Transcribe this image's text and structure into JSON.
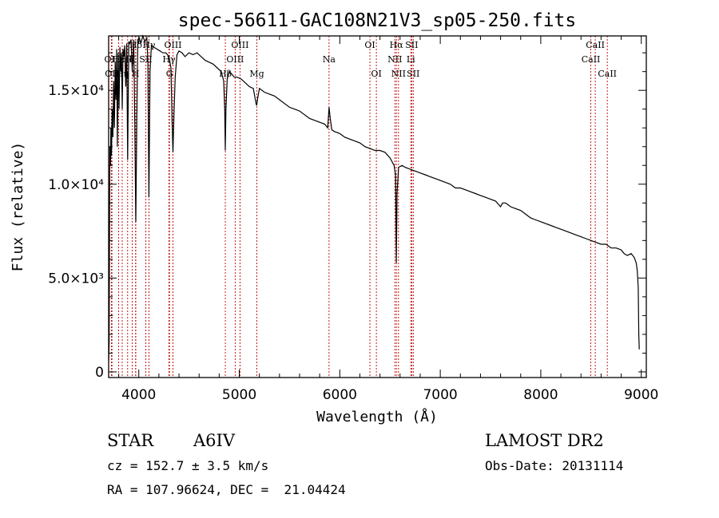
{
  "chart_data": {
    "type": "line",
    "title": "spec-56611-GAC108N21V3_sp05-250.fits",
    "xlabel": "Wavelength (Å)",
    "ylabel": "Flux (relative)",
    "xlim": [
      3700,
      9050
    ],
    "ylim": [
      -300,
      17900
    ],
    "x_ticks": [
      {
        "value": 4000,
        "label": "4000"
      },
      {
        "value": 5000,
        "label": "5000"
      },
      {
        "value": 6000,
        "label": "6000"
      },
      {
        "value": 7000,
        "label": "7000"
      },
      {
        "value": 8000,
        "label": "8000"
      },
      {
        "value": 9000,
        "label": "9000"
      }
    ],
    "y_ticks": [
      {
        "value": 0,
        "label": "0"
      },
      {
        "value": 5000,
        "label": "5.0×10³"
      },
      {
        "value": 10000,
        "label": "1.0×10⁴"
      },
      {
        "value": 15000,
        "label": "1.5×10⁴"
      }
    ],
    "series": [
      {
        "name": "spectrum",
        "color": "#000000",
        "points": [
          [
            3700,
            600
          ],
          [
            3705,
            1500
          ],
          [
            3712,
            12000
          ],
          [
            3718,
            11000
          ],
          [
            3722,
            13000
          ],
          [
            3728,
            11500
          ],
          [
            3735,
            14000
          ],
          [
            3742,
            12500
          ],
          [
            3750,
            15500
          ],
          [
            3757,
            13000
          ],
          [
            3765,
            16500
          ],
          [
            3772,
            14500
          ],
          [
            3780,
            17200
          ],
          [
            3787,
            12000
          ],
          [
            3795,
            17000
          ],
          [
            3803,
            14000
          ],
          [
            3812,
            17300
          ],
          [
            3820,
            16000
          ],
          [
            3828,
            17000
          ],
          [
            3835,
            14000
          ],
          [
            3843,
            17200
          ],
          [
            3852,
            16800
          ],
          [
            3860,
            17400
          ],
          [
            3870,
            15200
          ],
          [
            3880,
            17500
          ],
          [
            3889,
            11300
          ],
          [
            3900,
            17600
          ],
          [
            3910,
            17500
          ],
          [
            3922,
            17700
          ],
          [
            3935,
            16000
          ],
          [
            3950,
            17700
          ],
          [
            3960,
            13300
          ],
          [
            3970,
            8000
          ],
          [
            3980,
            13300
          ],
          [
            3990,
            17700
          ],
          [
            4005,
            17800
          ],
          [
            4020,
            17500
          ],
          [
            4040,
            17900
          ],
          [
            4060,
            17600
          ],
          [
            4080,
            17800
          ],
          [
            4090,
            16500
          ],
          [
            4101,
            9300
          ],
          [
            4112,
            16000
          ],
          [
            4125,
            17400
          ],
          [
            4150,
            17300
          ],
          [
            4180,
            17200
          ],
          [
            4210,
            17100
          ],
          [
            4240,
            17000
          ],
          [
            4270,
            17000
          ],
          [
            4300,
            16800
          ],
          [
            4320,
            16200
          ],
          [
            4330,
            13500
          ],
          [
            4340,
            11700
          ],
          [
            4350,
            13800
          ],
          [
            4362,
            15700
          ],
          [
            4380,
            16900
          ],
          [
            4400,
            17100
          ],
          [
            4430,
            17000
          ],
          [
            4460,
            16800
          ],
          [
            4500,
            17000
          ],
          [
            4540,
            16900
          ],
          [
            4580,
            17000
          ],
          [
            4620,
            16800
          ],
          [
            4660,
            16600
          ],
          [
            4700,
            16500
          ],
          [
            4740,
            16400
          ],
          [
            4780,
            16200
          ],
          [
            4820,
            16000
          ],
          [
            4845,
            15500
          ],
          [
            4855,
            14000
          ],
          [
            4861,
            11800
          ],
          [
            4867,
            14000
          ],
          [
            4880,
            15600
          ],
          [
            4900,
            16000
          ],
          [
            4920,
            15900
          ],
          [
            4950,
            15700
          ],
          [
            4980,
            15700
          ],
          [
            5020,
            15600
          ],
          [
            5060,
            15400
          ],
          [
            5100,
            15200
          ],
          [
            5140,
            15100
          ],
          [
            5167,
            14300
          ],
          [
            5173,
            14200
          ],
          [
            5183,
            14600
          ],
          [
            5200,
            15100
          ],
          [
            5250,
            14900
          ],
          [
            5300,
            14800
          ],
          [
            5350,
            14700
          ],
          [
            5400,
            14500
          ],
          [
            5450,
            14300
          ],
          [
            5500,
            14100
          ],
          [
            5550,
            14000
          ],
          [
            5600,
            13900
          ],
          [
            5650,
            13700
          ],
          [
            5700,
            13500
          ],
          [
            5750,
            13400
          ],
          [
            5800,
            13300
          ],
          [
            5850,
            13200
          ],
          [
            5880,
            13000
          ],
          [
            5893,
            14100
          ],
          [
            5905,
            13500
          ],
          [
            5920,
            12900
          ],
          [
            5950,
            12800
          ],
          [
            6000,
            12700
          ],
          [
            6050,
            12500
          ],
          [
            6100,
            12400
          ],
          [
            6150,
            12300
          ],
          [
            6200,
            12200
          ],
          [
            6250,
            12000
          ],
          [
            6300,
            11900
          ],
          [
            6350,
            11800
          ],
          [
            6400,
            11800
          ],
          [
            6450,
            11700
          ],
          [
            6500,
            11400
          ],
          [
            6540,
            11000
          ],
          [
            6555,
            10500
          ],
          [
            6563,
            5800
          ],
          [
            6570,
            9500
          ],
          [
            6585,
            10900
          ],
          [
            6620,
            11000
          ],
          [
            6650,
            10900
          ],
          [
            6700,
            10800
          ],
          [
            6750,
            10700
          ],
          [
            6800,
            10600
          ],
          [
            6850,
            10500
          ],
          [
            6900,
            10400
          ],
          [
            6950,
            10300
          ],
          [
            7000,
            10200
          ],
          [
            7050,
            10100
          ],
          [
            7100,
            10000
          ],
          [
            7150,
            9800
          ],
          [
            7200,
            9800
          ],
          [
            7250,
            9700
          ],
          [
            7300,
            9600
          ],
          [
            7350,
            9500
          ],
          [
            7400,
            9400
          ],
          [
            7450,
            9300
          ],
          [
            7500,
            9200
          ],
          [
            7550,
            9100
          ],
          [
            7600,
            8800
          ],
          [
            7620,
            9000
          ],
          [
            7650,
            9000
          ],
          [
            7700,
            8800
          ],
          [
            7750,
            8700
          ],
          [
            7800,
            8600
          ],
          [
            7850,
            8400
          ],
          [
            7900,
            8200
          ],
          [
            7950,
            8100
          ],
          [
            8000,
            8000
          ],
          [
            8050,
            7900
          ],
          [
            8100,
            7800
          ],
          [
            8150,
            7700
          ],
          [
            8200,
            7600
          ],
          [
            8250,
            7500
          ],
          [
            8300,
            7400
          ],
          [
            8350,
            7300
          ],
          [
            8400,
            7200
          ],
          [
            8450,
            7100
          ],
          [
            8500,
            7000
          ],
          [
            8550,
            6900
          ],
          [
            8600,
            6800
          ],
          [
            8650,
            6800
          ],
          [
            8700,
            6600
          ],
          [
            8750,
            6600
          ],
          [
            8800,
            6500
          ],
          [
            8830,
            6300
          ],
          [
            8860,
            6200
          ],
          [
            8900,
            6300
          ],
          [
            8930,
            6100
          ],
          [
            8950,
            5800
          ],
          [
            8960,
            5400
          ],
          [
            8970,
            4500
          ],
          [
            8975,
            2000
          ],
          [
            8980,
            1200
          ]
        ]
      }
    ],
    "line_markers": [
      {
        "wavelength": 3970,
        "label": "Hδ",
        "row": 1
      },
      {
        "wavelength": 4101,
        "label": "Hγ",
        "row": 1
      },
      {
        "wavelength": 4340,
        "label": "OIII",
        "row": 1
      },
      {
        "wavelength": 5007,
        "label": "OIII",
        "row": 1
      },
      {
        "wavelength": 6300,
        "label": "OI",
        "row": 1
      },
      {
        "wavelength": 6563,
        "label": "Hα",
        "row": 1
      },
      {
        "wavelength": 6716,
        "label": "SII",
        "row": 1
      },
      {
        "wavelength": 8542,
        "label": "CaII",
        "row": 1
      },
      {
        "wavelength": 3727,
        "label": "OII",
        "row": 2
      },
      {
        "wavelength": 3799,
        "label": "Hε",
        "row": 2
      },
      {
        "wavelength": 3889,
        "label": "Hζ",
        "row": 2
      },
      {
        "wavelength": 3934,
        "label": "K",
        "row": 2
      },
      {
        "wavelength": 4070,
        "label": "SII",
        "row": 2
      },
      {
        "wavelength": 4300,
        "label": "Hγ",
        "row": 2
      },
      {
        "wavelength": 4959,
        "label": "OIII",
        "row": 2
      },
      {
        "wavelength": 5893,
        "label": "Na",
        "row": 2
      },
      {
        "wavelength": 6548,
        "label": "NII",
        "row": 2
      },
      {
        "wavelength": 6707,
        "label": "Li",
        "row": 2
      },
      {
        "wavelength": 8498,
        "label": "CaII",
        "row": 2
      },
      {
        "wavelength": 3733,
        "label": "OII",
        "row": 3
      },
      {
        "wavelength": 3835,
        "label": "Hη",
        "row": 3
      },
      {
        "wavelength": 3968,
        "label": "H",
        "row": 3
      },
      {
        "wavelength": 4305,
        "label": "G",
        "row": 3
      },
      {
        "wavelength": 4861,
        "label": "Hβ",
        "row": 3
      },
      {
        "wavelength": 5175,
        "label": "Mg",
        "row": 3
      },
      {
        "wavelength": 6364,
        "label": "OI",
        "row": 3
      },
      {
        "wavelength": 6584,
        "label": "NII",
        "row": 3
      },
      {
        "wavelength": 6731,
        "label": "SII",
        "row": 3
      },
      {
        "wavelength": 8662,
        "label": "CaII",
        "row": 3
      }
    ],
    "marker_color": "#c00000"
  },
  "info": {
    "object_class": "STAR",
    "subclass": "A6IV",
    "survey": "LAMOST DR2",
    "redshift": "cz = 152.7 ± 3.5 km/s",
    "obs_date": "Obs-Date: 20131114",
    "coords": "RA = 107.96624, DEC =  21.04424"
  }
}
